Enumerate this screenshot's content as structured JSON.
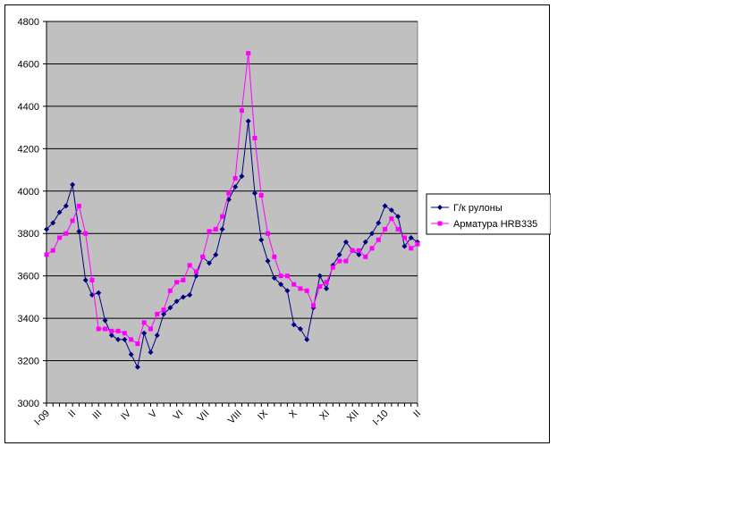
{
  "chart_data": {
    "type": "line",
    "title": "",
    "xlabel": "",
    "ylabel": "",
    "ylim": [
      3000,
      4800
    ],
    "y_ticks": [
      "3000",
      "3200",
      "3400",
      "3600",
      "3800",
      "4000",
      "4200",
      "4400",
      "4600",
      "4800"
    ],
    "x_tick_labels": [
      "I-09",
      "II",
      "III",
      "IV",
      "V",
      "VI",
      "VII",
      "VIII",
      "IX",
      "X",
      "XI",
      "XII",
      "I-10",
      "II"
    ],
    "x_tick_positions": [
      0,
      4,
      8,
      12.5,
      16.5,
      20.5,
      24.5,
      29.5,
      33.5,
      38,
      43,
      47.5,
      52,
      57
    ],
    "grid": true,
    "plot_background": "#c0c0c0",
    "legend_position": "right",
    "series": [
      {
        "name": "Г/к рулоны",
        "color": "#000080",
        "marker": "diamond",
        "values": [
          3820,
          3850,
          3900,
          3930,
          4030,
          3810,
          3580,
          3510,
          3520,
          3390,
          3320,
          3300,
          3300,
          3230,
          3170,
          3330,
          3240,
          3320,
          3420,
          3450,
          3480,
          3500,
          3510,
          3600,
          3690,
          3660,
          3700,
          3820,
          3960,
          4020,
          4070,
          4330,
          3990,
          3770,
          3670,
          3590,
          3560,
          3530,
          3370,
          3350,
          3300,
          3450,
          3600,
          3540,
          3650,
          3700,
          3760,
          3720,
          3700,
          3760,
          3800,
          3850,
          3930,
          3910,
          3880,
          3740,
          3780,
          3760
        ]
      },
      {
        "name": "Арматура HRB335",
        "color": "#ff00ff",
        "marker": "square",
        "values": [
          3700,
          3720,
          3780,
          3800,
          3860,
          3930,
          3800,
          3580,
          3350,
          3350,
          3340,
          3340,
          3330,
          3300,
          3280,
          3380,
          3350,
          3420,
          3440,
          3530,
          3570,
          3580,
          3650,
          3620,
          3690,
          3810,
          3820,
          3880,
          3990,
          4060,
          4380,
          4650,
          4250,
          3980,
          3800,
          3690,
          3600,
          3600,
          3560,
          3540,
          3530,
          3460,
          3550,
          3570,
          3640,
          3670,
          3670,
          3720,
          3720,
          3690,
          3730,
          3770,
          3820,
          3870,
          3820,
          3780,
          3730,
          3750
        ]
      }
    ]
  }
}
